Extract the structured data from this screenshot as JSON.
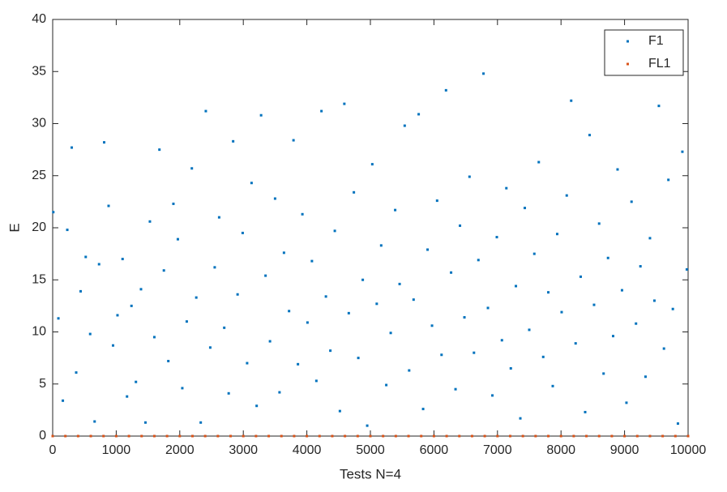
{
  "chart_data": {
    "type": "scatter",
    "xlabel": "Tests N=4",
    "ylabel": "E",
    "xlim": [
      0,
      10000
    ],
    "ylim": [
      0,
      40
    ],
    "xticks": [
      0,
      1000,
      2000,
      3000,
      4000,
      5000,
      6000,
      7000,
      8000,
      9000,
      10000
    ],
    "yticks": [
      0,
      5,
      10,
      15,
      20,
      25,
      30,
      35,
      40
    ],
    "legend": "northeast",
    "grid": false,
    "series": [
      {
        "name": "F1",
        "color": "#0072bd",
        "x": [
          10,
          90,
          160,
          230,
          300,
          370,
          440,
          520,
          590,
          660,
          730,
          810,
          880,
          950,
          1020,
          1100,
          1170,
          1240,
          1310,
          1390,
          1460,
          1530,
          1600,
          1680,
          1750,
          1820,
          1900,
          1970,
          2040,
          2110,
          2190,
          2260,
          2330,
          2410,
          2480,
          2550,
          2620,
          2700,
          2770,
          2840,
          2910,
          2990,
          3060,
          3130,
          3210,
          3280,
          3350,
          3420,
          3500,
          3570,
          3640,
          3720,
          3790,
          3860,
          3930,
          4010,
          4080,
          4150,
          4230,
          4300,
          4370,
          4440,
          4520,
          4590,
          4660,
          4740,
          4810,
          4880,
          4950,
          5030,
          5100,
          5170,
          5250,
          5320,
          5390,
          5460,
          5540,
          5610,
          5680,
          5760,
          5830,
          5900,
          5970,
          6050,
          6120,
          6190,
          6270,
          6340,
          6410,
          6480,
          6560,
          6630,
          6700,
          6780,
          6850,
          6920,
          6990,
          7070,
          7140,
          7210,
          7290,
          7360,
          7430,
          7500,
          7580,
          7650,
          7720,
          7800,
          7870,
          7940,
          8010,
          8090,
          8160,
          8230,
          8310,
          8380,
          8450,
          8520,
          8600,
          8670,
          8740,
          8820,
          8890,
          8960,
          9030,
          9110,
          9180,
          9250,
          9330,
          9400,
          9470,
          9540,
          9620,
          9690,
          9760,
          9840,
          9910,
          9980
        ],
        "values": [
          21.5,
          11.3,
          3.4,
          19.8,
          27.7,
          6.1,
          13.9,
          17.2,
          9.8,
          1.4,
          16.5,
          28.2,
          22.1,
          8.7,
          11.6,
          17.0,
          3.8,
          12.5,
          5.2,
          14.1,
          1.3,
          20.6,
          9.5,
          27.5,
          15.9,
          7.2,
          22.3,
          18.9,
          4.6,
          11.0,
          25.7,
          13.3,
          1.3,
          31.2,
          8.5,
          16.2,
          21.0,
          10.4,
          4.1,
          28.3,
          13.6,
          19.5,
          7.0,
          24.3,
          2.9,
          30.8,
          15.4,
          9.1,
          22.8,
          4.2,
          17.6,
          12.0,
          28.4,
          6.9,
          21.3,
          10.9,
          16.8,
          5.3,
          31.2,
          13.4,
          8.2,
          19.7,
          2.4,
          31.9,
          11.8,
          23.4,
          7.5,
          15.0,
          1.0,
          26.1,
          12.7,
          18.3,
          4.9,
          9.9,
          21.7,
          14.6,
          29.8,
          6.3,
          13.1,
          30.9,
          2.6,
          17.9,
          10.6,
          22.6,
          7.8,
          33.2,
          15.7,
          4.5,
          20.2,
          11.4,
          24.9,
          8.0,
          16.9,
          34.8,
          12.3,
          3.9,
          19.1,
          9.2,
          23.8,
          6.5,
          14.4,
          1.7,
          21.9,
          10.2,
          17.5,
          26.3,
          7.6,
          13.8,
          4.8,
          19.4,
          11.9,
          23.1,
          32.2,
          8.9,
          15.3,
          2.3,
          28.9,
          12.6,
          20.4,
          6.0,
          17.1,
          9.6,
          25.6,
          14.0,
          3.2,
          22.5,
          10.8,
          16.3,
          5.7,
          19.0,
          13.0,
          31.7,
          8.4,
          24.6,
          12.2,
          1.2,
          27.3,
          16.0
        ]
      },
      {
        "name": "FL1",
        "color": "#d95319",
        "x": [
          0,
          200,
          400,
          600,
          800,
          1000,
          1200,
          1400,
          1600,
          1800,
          2000,
          2200,
          2400,
          2600,
          2800,
          3000,
          3200,
          3400,
          3600,
          3800,
          4000,
          4200,
          4400,
          4600,
          4800,
          5000,
          5200,
          5400,
          5600,
          5800,
          6000,
          6200,
          6400,
          6600,
          6800,
          7000,
          7200,
          7400,
          7600,
          7800,
          8000,
          8200,
          8400,
          8600,
          8800,
          9000,
          9200,
          9400,
          9600,
          9800,
          10000
        ],
        "values": [
          0,
          0,
          0,
          0,
          0,
          0,
          0,
          0,
          0,
          0,
          0,
          0,
          0,
          0,
          0,
          0,
          0,
          0,
          0,
          0,
          0,
          0,
          0,
          0,
          0,
          0,
          0,
          0,
          0,
          0,
          0,
          0,
          0,
          0,
          0,
          0,
          0,
          0,
          0,
          0,
          0,
          0,
          0,
          0,
          0,
          0,
          0,
          0,
          0,
          0,
          0
        ]
      }
    ]
  }
}
